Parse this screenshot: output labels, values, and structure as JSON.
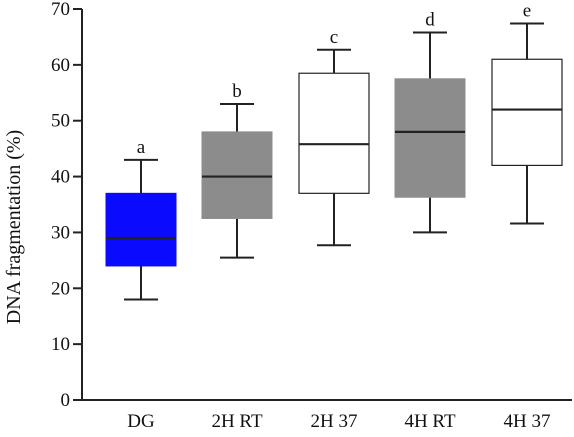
{
  "chart_data": {
    "type": "box",
    "ylabel": "DNA fragmentation (%)",
    "xlabel": "",
    "ylim": [
      0,
      70
    ],
    "yticks": [
      0,
      10,
      20,
      30,
      40,
      50,
      60,
      70
    ],
    "grid": false,
    "categories": [
      "DG",
      "2H RT",
      "2H 37",
      "4H RT",
      "4H 37"
    ],
    "boxes": [
      {
        "category": "DG",
        "min": 18.0,
        "q1": 24.0,
        "median": 29.0,
        "q3": 37.0,
        "max": 43.0,
        "letter": "a",
        "fill": "#0a0aff"
      },
      {
        "category": "2H RT",
        "min": 25.5,
        "q1": 32.5,
        "median": 40.0,
        "q3": 48.0,
        "max": 53.0,
        "letter": "b",
        "fill": "#8c8c8c"
      },
      {
        "category": "2H 37",
        "min": 27.7,
        "q1": 37.0,
        "median": 45.8,
        "q3": 58.5,
        "max": 62.7,
        "letter": "c",
        "fill": "#ffffff"
      },
      {
        "category": "4H RT",
        "min": 30.0,
        "q1": 36.3,
        "median": 48.0,
        "q3": 57.5,
        "max": 65.8,
        "letter": "d",
        "fill": "#8c8c8c"
      },
      {
        "category": "4H 37",
        "min": 31.6,
        "q1": 42.0,
        "median": 52.0,
        "q3": 61.0,
        "max": 67.4,
        "letter": "e",
        "fill": "#ffffff"
      }
    ],
    "colors": {
      "axis": "#222222",
      "whisker": "#222222",
      "median": "#222222"
    }
  }
}
